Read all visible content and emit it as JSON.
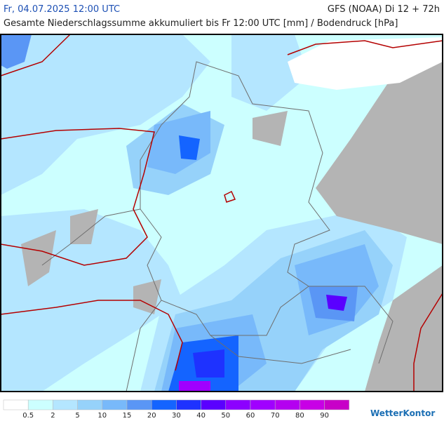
{
  "header": {
    "valid_time": "Fr, 04.07.2025 12:00 UTC",
    "model_run": "GFS (NOAA) Di 12 + 72h",
    "subtitle": "Gesamte Niederschlagssumme akkumuliert bis Fr 12:00 UTC [mm] / Bodendruck [hPa]"
  },
  "legend": {
    "colors": [
      "#ffffff",
      "#ccffff",
      "#b4e6ff",
      "#96d2fa",
      "#78b9fa",
      "#5a96f5",
      "#1464ff",
      "#1e32ff",
      "#5a00ff",
      "#8c00ff",
      "#a000ff",
      "#b400f0",
      "#c800e6",
      "#c800c8"
    ],
    "labels": [
      0.5,
      2,
      5,
      10,
      15,
      20,
      30,
      40,
      50,
      60,
      70,
      80,
      90
    ]
  },
  "brand": "WetterKontor"
}
